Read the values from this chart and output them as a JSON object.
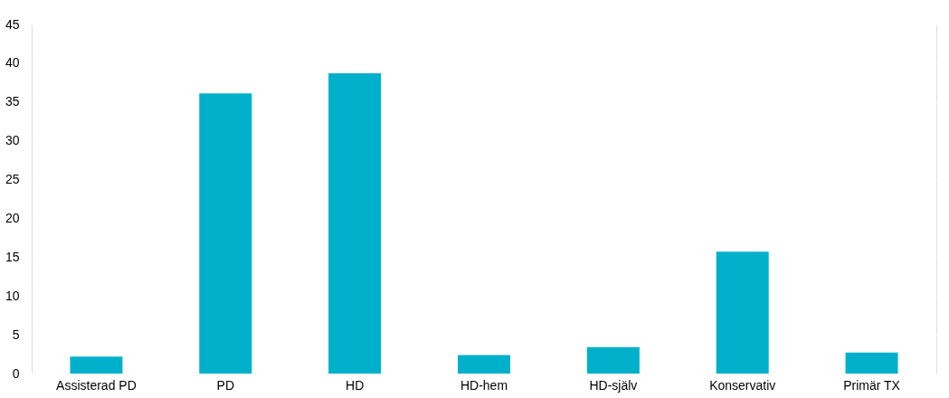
{
  "chart_data": {
    "type": "bar",
    "categories": [
      "Assisterad PD",
      "PD",
      "HD",
      "HD-hem",
      "HD-själv",
      "Konservativ",
      "Primär TX"
    ],
    "values": [
      2.2,
      36.1,
      38.7,
      2.4,
      3.4,
      15.7,
      2.7
    ],
    "color": "#00b0cb",
    "ylim": [
      0,
      45
    ],
    "yticks": [
      0,
      5,
      10,
      15,
      20,
      25,
      30,
      35,
      40,
      45
    ],
    "grid": "y"
  }
}
